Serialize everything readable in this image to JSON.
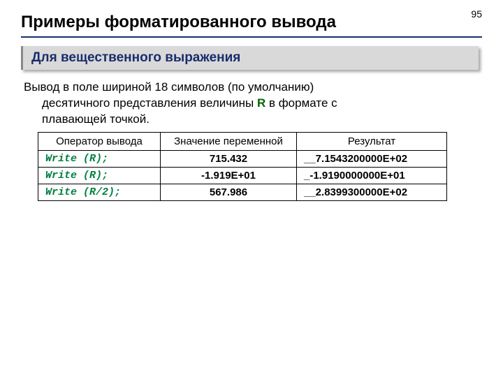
{
  "page_number": "95",
  "title": "Примеры форматированного вывода",
  "subtitle": "Для вещественного выражения",
  "description": {
    "line1": "Вывод в поле шириной 18 символов (по умолчанию)",
    "line2_a": "десятичного представления величины ",
    "line2_r": "R",
    "line2_b": " в формате с",
    "line3": "плавающей точкой."
  },
  "table": {
    "headers": [
      "Оператор вывода",
      "Значение переменной",
      "Результат"
    ],
    "rows": [
      {
        "op": "Write (R);",
        "val": "715.432",
        "res": "__7.1543200000E+02"
      },
      {
        "op": "Write (R);",
        "val": "-1.919E+01",
        "res": "_-1.9190000000E+01"
      },
      {
        "op": "Write (R/2);",
        "val": "567.986",
        "res": "__2.8399300000E+02"
      }
    ]
  },
  "style": {
    "accent_color": "#1a2d6b",
    "code_color": "#008040",
    "r_color": "#006400",
    "subtitle_bg": "#d9d9d9"
  }
}
